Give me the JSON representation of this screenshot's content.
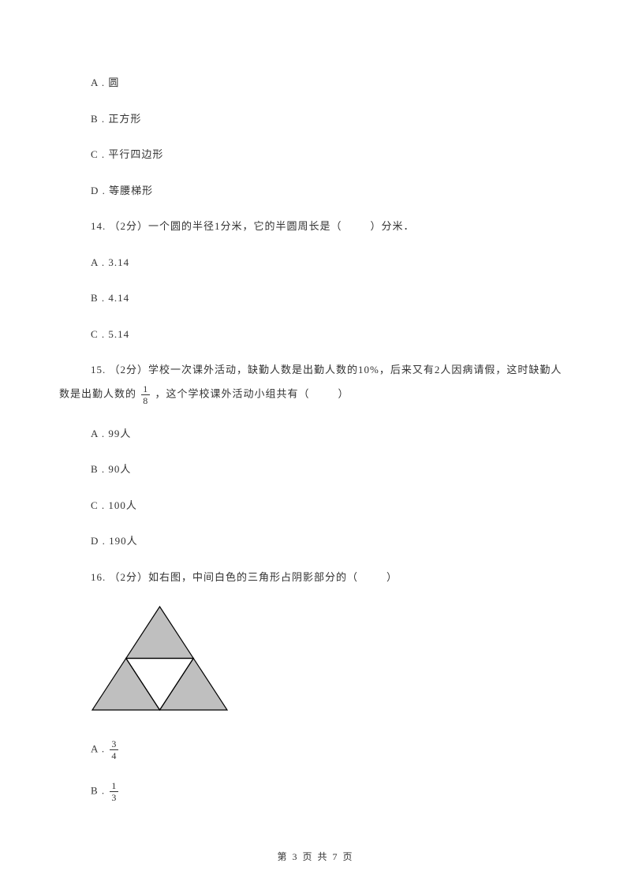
{
  "q13_options": {
    "A": "A . 圆",
    "B": "B . 正方形",
    "C": "C . 平行四边形",
    "D": "D . 等腰梯形"
  },
  "q14": {
    "stem_prefix": "14. （2分）一个圆的半径1分米，它的半圆周长是（",
    "stem_suffix": "）分米．",
    "options": {
      "A": "A . 3.14",
      "B": "B . 4.14",
      "C": "C . 5.14"
    }
  },
  "q15": {
    "stem_line1_prefix": "15. （2分）学校一次课外活动，缺勤人数是出勤人数的10%，后来又有2人因病请假，这时缺勤人",
    "stem_line2_prefix": "数是出勤人数的 ",
    "fraction": {
      "num": "1",
      "den": "8"
    },
    "stem_line2_suffix_prefix": " ，这个学校课外活动小组共有（",
    "stem_line2_suffix_end": "）",
    "options": {
      "A": "A . 99人",
      "B": "B . 90人",
      "C": "C . 100人",
      "D": "D . 190人"
    }
  },
  "q16": {
    "stem_prefix": "16. （2分）如右图，中间白色的三角形占阴影部分的（",
    "stem_suffix": "）",
    "triangle": {
      "width": 175,
      "height": 135,
      "outer_fill": "#bfbfbf",
      "inner_fill": "#ffffff",
      "stroke": "#000000",
      "stroke_width": 1.2
    },
    "options": {
      "A": {
        "label": "A . ",
        "num": "3",
        "den": "4"
      },
      "B": {
        "label": "B . ",
        "num": "1",
        "den": "3"
      }
    }
  },
  "footer": {
    "prefix": "第 ",
    "page": "3",
    "mid": " 页 共 ",
    "total": "7",
    "suffix": " 页"
  }
}
